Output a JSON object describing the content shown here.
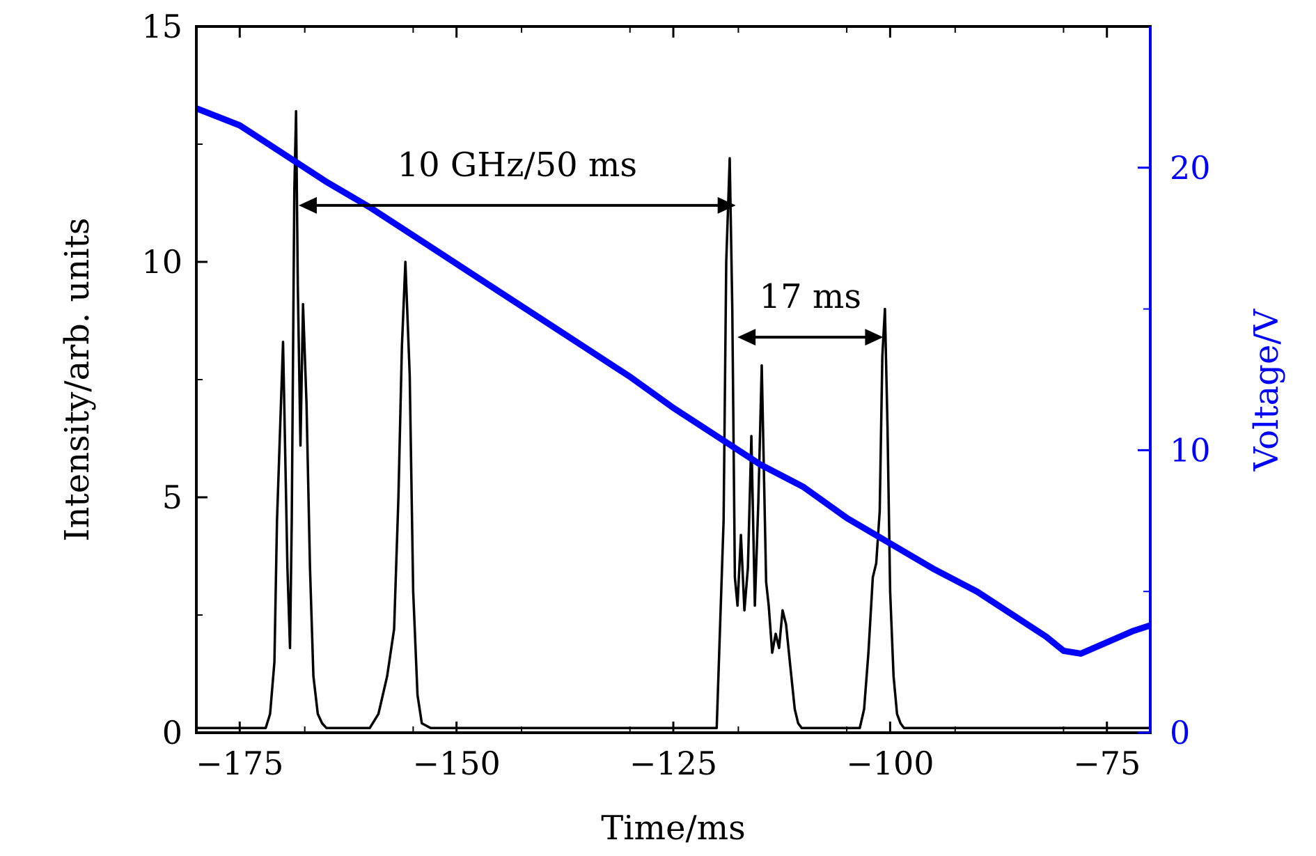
{
  "chart_data": {
    "type": "line",
    "xlabel": "Time/ms",
    "ylabel": "Intensity/arb. units",
    "y2label": "Voltage/V",
    "xlim": [
      -180,
      -70
    ],
    "ylim": [
      0,
      15
    ],
    "y2lim": [
      0,
      25
    ],
    "x_ticks": [
      -175,
      -150,
      -125,
      -100,
      -75
    ],
    "x_tick_labels": [
      "−175",
      "−150",
      "−125",
      "−100",
      "−75"
    ],
    "y_ticks": [
      0,
      5,
      10,
      15
    ],
    "y_tick_labels": [
      "0",
      "5",
      "10",
      "15"
    ],
    "y2_ticks": [
      0,
      10,
      20
    ],
    "y2_tick_labels": [
      "0",
      "10",
      "20"
    ],
    "grid": false,
    "colors": {
      "intensity": "#000000",
      "voltage": "#0000ff"
    },
    "series": [
      {
        "axis": "left",
        "color": "#000000",
        "x": [
          -180,
          -172,
          -171.5,
          -171,
          -170.7,
          -170,
          -169.5,
          -169.2,
          -169,
          -168.7,
          -168.5,
          -168.3,
          -168,
          -167.7,
          -167.3,
          -166.9,
          -166.5,
          -166,
          -165.5,
          -165,
          -164,
          -160,
          -159,
          -158,
          -157.2,
          -156.7,
          -156.3,
          -155.9,
          -155.4,
          -155,
          -154.5,
          -154,
          -153,
          -120,
          -119.2,
          -118.9,
          -118.5,
          -118.2,
          -117.9,
          -117.6,
          -117.2,
          -116.8,
          -116.4,
          -116,
          -115.6,
          -115.2,
          -114.8,
          -114.3,
          -114,
          -113.6,
          -113.2,
          -112.8,
          -112.4,
          -112,
          -111.5,
          -111,
          -110.6,
          -110.2,
          -109.5,
          -109,
          -103.5,
          -103,
          -102.5,
          -102,
          -101.6,
          -101.2,
          -100.9,
          -100.6,
          -100.3,
          -100,
          -99.6,
          -99.2,
          -98.8,
          -98.4,
          -98,
          -70
        ],
        "y": [
          0.1,
          0.1,
          0.4,
          1.5,
          4.5,
          8.3,
          3.5,
          1.8,
          4.5,
          11.5,
          13.2,
          9.5,
          6.1,
          9.1,
          7.0,
          3.5,
          1.2,
          0.4,
          0.2,
          0.1,
          0.1,
          0.1,
          0.4,
          1.2,
          2.2,
          5.0,
          8.2,
          10.0,
          7.6,
          3.0,
          0.8,
          0.2,
          0.1,
          0.1,
          4.5,
          10.0,
          12.2,
          9.0,
          3.3,
          2.7,
          4.2,
          2.6,
          3.5,
          6.3,
          2.7,
          4.9,
          7.8,
          3.2,
          2.7,
          1.7,
          2.1,
          1.8,
          2.6,
          2.3,
          1.4,
          0.5,
          0.2,
          0.1,
          0.1,
          0.1,
          0.1,
          0.5,
          1.7,
          3.3,
          3.6,
          4.7,
          8.0,
          9.0,
          6.5,
          3.0,
          1.2,
          0.4,
          0.2,
          0.1,
          0.1,
          0.1
        ]
      },
      {
        "axis": "right",
        "color": "#0000ff",
        "x": [
          -180,
          -175,
          -170,
          -165,
          -160,
          -155,
          -150,
          -145,
          -140,
          -135,
          -130,
          -125,
          -120,
          -115,
          -110,
          -105,
          -100,
          -95,
          -90,
          -85,
          -82,
          -80,
          -78,
          -75,
          -72,
          -70
        ],
        "y": [
          22.1,
          21.5,
          20.5,
          19.5,
          18.6,
          17.6,
          16.6,
          15.6,
          14.6,
          13.6,
          12.6,
          11.5,
          10.5,
          9.5,
          8.7,
          7.6,
          6.7,
          5.8,
          5.0,
          4.0,
          3.4,
          2.9,
          2.8,
          3.2,
          3.6,
          3.8
        ]
      }
    ],
    "annotations": [
      {
        "text": "10 GHz/50 ms",
        "arrow_from": -168.2,
        "arrow_to": -117.8,
        "y": 11.2
      },
      {
        "text": "17 ms",
        "arrow_from": -117.6,
        "arrow_to": -100.8,
        "y": 8.4
      }
    ]
  }
}
